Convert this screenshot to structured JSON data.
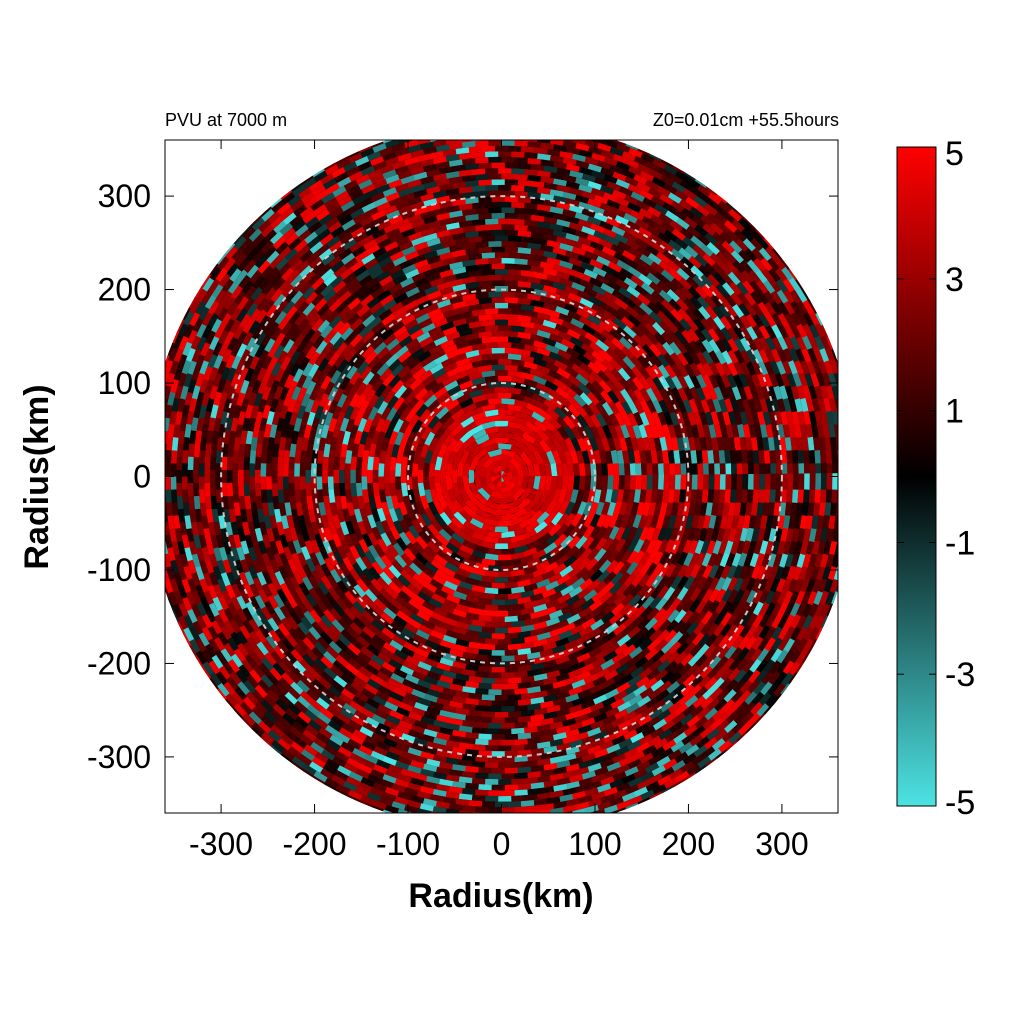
{
  "header": {
    "left_text": "PVU at  7000 m",
    "right_text": "Z0=0.01cm  +55.5hours"
  },
  "colors": {
    "negative": "#4de3e3",
    "zero": "#000000",
    "positive": "#ff0000",
    "ring_color": "#c8c8c8"
  },
  "chart_data": {
    "type": "heatmap",
    "projection": "polar field plotted on Cartesian km axes",
    "title": "",
    "xlabel": "Radius(km)",
    "ylabel": "Radius(km)",
    "xlim": [
      -360,
      360
    ],
    "ylim": [
      -360,
      360
    ],
    "domain_radius_km": 380,
    "x_ticks": [
      -300,
      -200,
      -100,
      0,
      100,
      200,
      300
    ],
    "y_ticks": [
      300,
      200,
      100,
      0,
      -100,
      -200,
      -300
    ],
    "x_tick_labels": [
      "-300",
      "-200",
      "-100",
      "0",
      "100",
      "200",
      "300"
    ],
    "y_tick_labels": [
      "300",
      "200",
      "100",
      "0",
      "-100",
      "-200",
      "-300"
    ],
    "reference_circles_km": [
      100,
      200,
      300
    ],
    "colorbar": {
      "min": -5,
      "max": 5,
      "tick_values": [
        5,
        3,
        1,
        -1,
        -3,
        -5
      ],
      "tick_labels": [
        "5",
        "3",
        "1",
        "-1",
        "-3",
        "-5"
      ],
      "colormap": [
        "#4de3e3",
        "#000000",
        "#ff0000"
      ],
      "center_value": 0
    },
    "field_summary": {
      "core_radius_km": 80,
      "core_value": 5,
      "outer_typical_value": 1.5,
      "negative_patch_value": -5
    }
  }
}
